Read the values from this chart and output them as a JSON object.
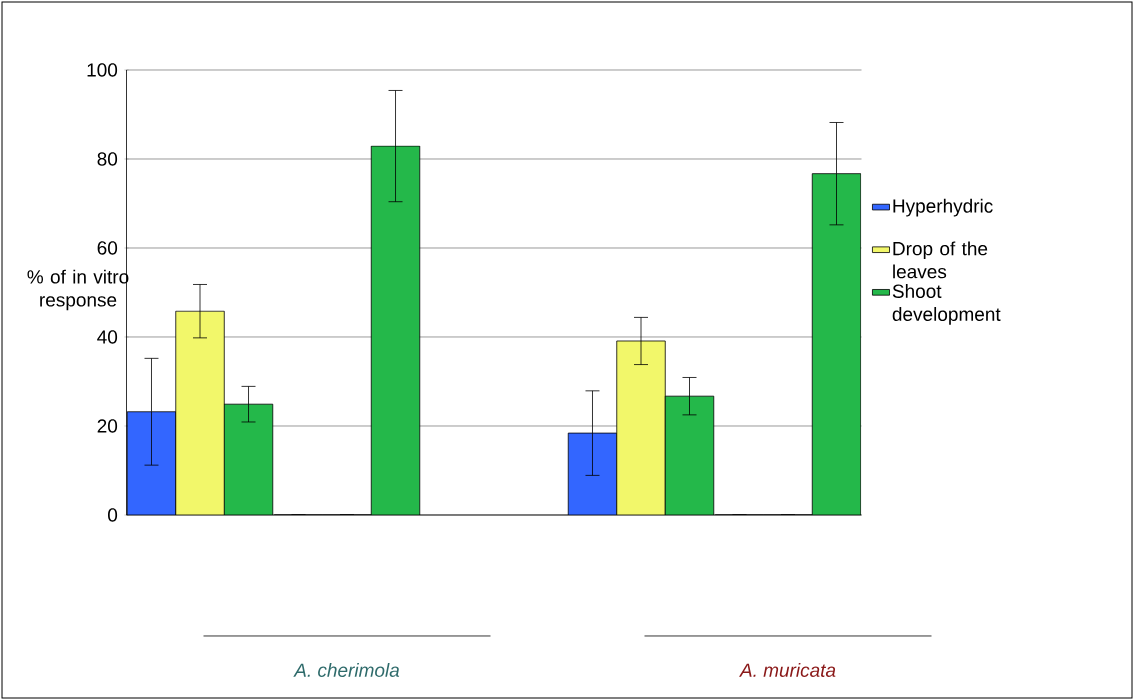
{
  "chart_data": {
    "type": "bar",
    "ylabel": "% of in vitro response",
    "categories": [
      null,
      null,
      null,
      null,
      null
    ],
    "series": [
      {
        "name": "Hyperhydric",
        "color": "#3366ff",
        "values": [
          23.2,
          0,
          null,
          18.4,
          0
        ],
        "errors": [
          12,
          null,
          null,
          9.5,
          null
        ]
      },
      {
        "name": "Drop of the leaves",
        "color": "#f2f76a",
        "values": [
          45.8,
          0,
          null,
          39.1,
          0
        ],
        "errors": [
          6,
          null,
          null,
          5.3,
          null
        ]
      },
      {
        "name": "Shoot development",
        "color": "#24b84a",
        "values": [
          24.9,
          82.9,
          null,
          26.7,
          76.7
        ],
        "errors": [
          4,
          12.5,
          null,
          4.2,
          11.5
        ]
      }
    ],
    "ylim": [
      0,
      100
    ],
    "yticks": [
      0,
      20,
      40,
      60,
      80,
      100
    ],
    "grid": "y",
    "legend": "right",
    "annotations": [
      "*A. cherimola*",
      "*A. muricata*"
    ]
  }
}
